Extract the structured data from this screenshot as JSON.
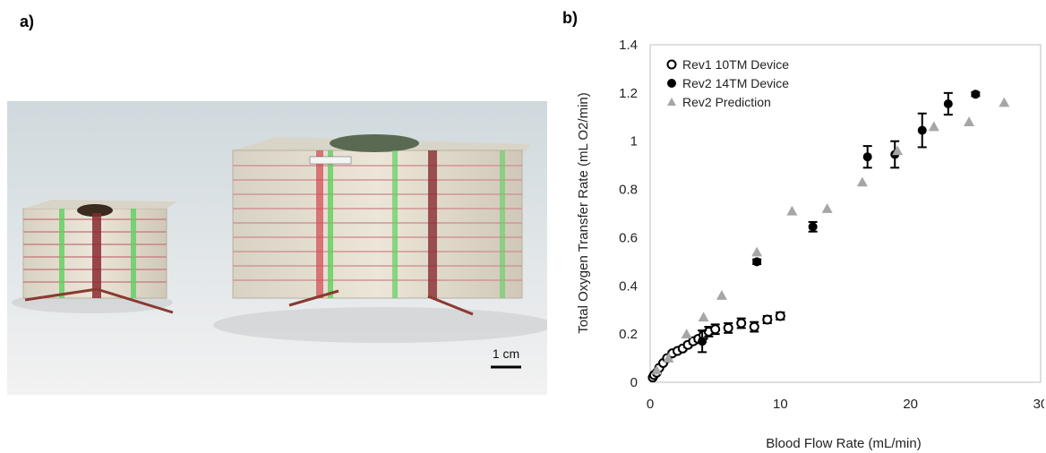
{
  "panels": {
    "a_label": "a)",
    "b_label": "b)"
  },
  "photo": {
    "scale_bar_label": "1 cm"
  },
  "chart_data": {
    "type": "scatter",
    "xlabel": "Blood Flow Rate (mL/min)",
    "ylabel": "Total Oxygen Transfer Rate (mL O2/min)",
    "xlim": [
      0,
      30
    ],
    "ylim": [
      0,
      1.4
    ],
    "xticks": [
      0,
      10,
      20,
      30
    ],
    "yticks": [
      0,
      0.2,
      0.4,
      0.6,
      0.8,
      1,
      1.2,
      1.4
    ],
    "ytick_labels": [
      "0",
      "0.2",
      "0.4",
      "0.6",
      "0.8",
      "1",
      "1.2",
      "1.4"
    ],
    "legend_position": "top-left",
    "grid": false,
    "series": [
      {
        "name": "Rev1 10TM Device",
        "marker": "open-circle",
        "color": "#000000",
        "x": [
          0.2,
          0.3,
          0.5,
          0.7,
          1.0,
          1.3,
          1.7,
          2.1,
          2.5,
          2.9,
          3.3,
          3.7,
          4.1,
          4.5,
          5.0,
          6.0,
          7.0,
          8.0,
          9.0,
          10.0
        ],
        "y": [
          0.02,
          0.03,
          0.04,
          0.06,
          0.08,
          0.1,
          0.12,
          0.13,
          0.14,
          0.155,
          0.17,
          0.18,
          0.195,
          0.21,
          0.22,
          0.225,
          0.245,
          0.23,
          0.26,
          0.275
        ],
        "err": [
          0.005,
          0.005,
          0.005,
          0.005,
          0.005,
          0.005,
          0.008,
          0.008,
          0.008,
          0.01,
          0.01,
          0.01,
          0.015,
          0.02,
          0.02,
          0.02,
          0.02,
          0.02,
          0.015,
          0.015
        ]
      },
      {
        "name": "Rev2 14TM Device",
        "marker": "filled-circle",
        "color": "#000000",
        "x": [
          4.0,
          8.2,
          12.5,
          16.7,
          18.8,
          20.9,
          22.9,
          25.0
        ],
        "y": [
          0.17,
          0.5,
          0.645,
          0.935,
          0.945,
          1.045,
          1.155,
          1.195
        ],
        "err": [
          0.045,
          0.01,
          0.02,
          0.045,
          0.055,
          0.07,
          0.045,
          0.008
        ]
      },
      {
        "name": "Rev2 Prediction",
        "marker": "triangle",
        "color": "#a6a6a6",
        "x": [
          0.5,
          1.4,
          2.8,
          4.1,
          5.5,
          8.2,
          10.9,
          13.6,
          16.3,
          19.0,
          21.8,
          24.5,
          27.2
        ],
        "y": [
          0.05,
          0.1,
          0.2,
          0.27,
          0.36,
          0.54,
          0.71,
          0.72,
          0.83,
          0.96,
          1.06,
          1.08,
          1.16
        ]
      }
    ]
  }
}
